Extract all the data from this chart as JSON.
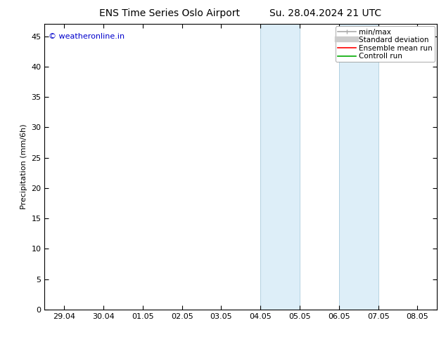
{
  "title_left": "ENS Time Series Oslo Airport",
  "title_right": "Su. 28.04.2024 21 UTC",
  "ylabel": "Precipitation (mm/6h)",
  "xlabel": "",
  "watermark": "© weatheronline.in",
  "watermark_color": "#0000cc",
  "ylim": [
    0,
    47
  ],
  "yticks": [
    0,
    5,
    10,
    15,
    20,
    25,
    30,
    35,
    40,
    45
  ],
  "xtick_labels": [
    "29.04",
    "30.04",
    "01.05",
    "02.05",
    "03.05",
    "04.05",
    "05.05",
    "06.05",
    "07.05",
    "08.05"
  ],
  "xtick_positions": [
    0,
    1,
    2,
    3,
    4,
    5,
    6,
    7,
    8,
    9
  ],
  "shaded_regions": [
    {
      "xmin": 5,
      "xmax": 6,
      "color": "#ddeef8"
    },
    {
      "xmin": 7,
      "xmax": 8,
      "color": "#ddeef8"
    }
  ],
  "bg_color": "#ffffff",
  "plot_bg_color": "#ffffff",
  "border_color": "#000000",
  "legend_items": [
    {
      "label": "min/max",
      "color": "#aaaaaa",
      "lw": 1.2
    },
    {
      "label": "Standard deviation",
      "color": "#cccccc",
      "lw": 6
    },
    {
      "label": "Ensemble mean run",
      "color": "#ff0000",
      "lw": 1.2
    },
    {
      "label": "Controll run",
      "color": "#00aa00",
      "lw": 1.2
    }
  ],
  "font_size": 8,
  "title_font_size": 10
}
